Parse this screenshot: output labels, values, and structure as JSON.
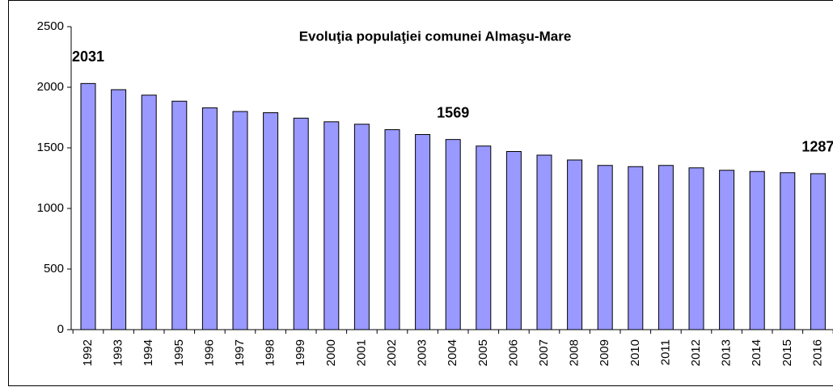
{
  "chart_data": {
    "type": "bar",
    "title": "Evoluţia populaţiei comunei Almaşu-Mare",
    "categories": [
      "1992",
      "1993",
      "1994",
      "1995",
      "1996",
      "1997",
      "1998",
      "1999",
      "2000",
      "2001",
      "2002",
      "2003",
      "2004",
      "2005",
      "2006",
      "2007",
      "2008",
      "2009",
      "2010",
      "2011",
      "2012",
      "2013",
      "2014",
      "2015",
      "2016"
    ],
    "values": [
      2031,
      1980,
      1935,
      1885,
      1830,
      1800,
      1790,
      1745,
      1715,
      1695,
      1650,
      1610,
      1569,
      1515,
      1470,
      1440,
      1400,
      1355,
      1345,
      1355,
      1335,
      1315,
      1305,
      1295,
      1287
    ],
    "value_labels": [
      "2031",
      null,
      null,
      null,
      null,
      null,
      null,
      null,
      null,
      null,
      null,
      null,
      "1569",
      null,
      null,
      null,
      null,
      null,
      null,
      null,
      null,
      null,
      null,
      null,
      "1287"
    ],
    "color": "#9999ff",
    "ylim": [
      0,
      2500
    ],
    "yticks": [
      0,
      500,
      1000,
      1500,
      2000,
      2500
    ],
    "grid": false
  }
}
